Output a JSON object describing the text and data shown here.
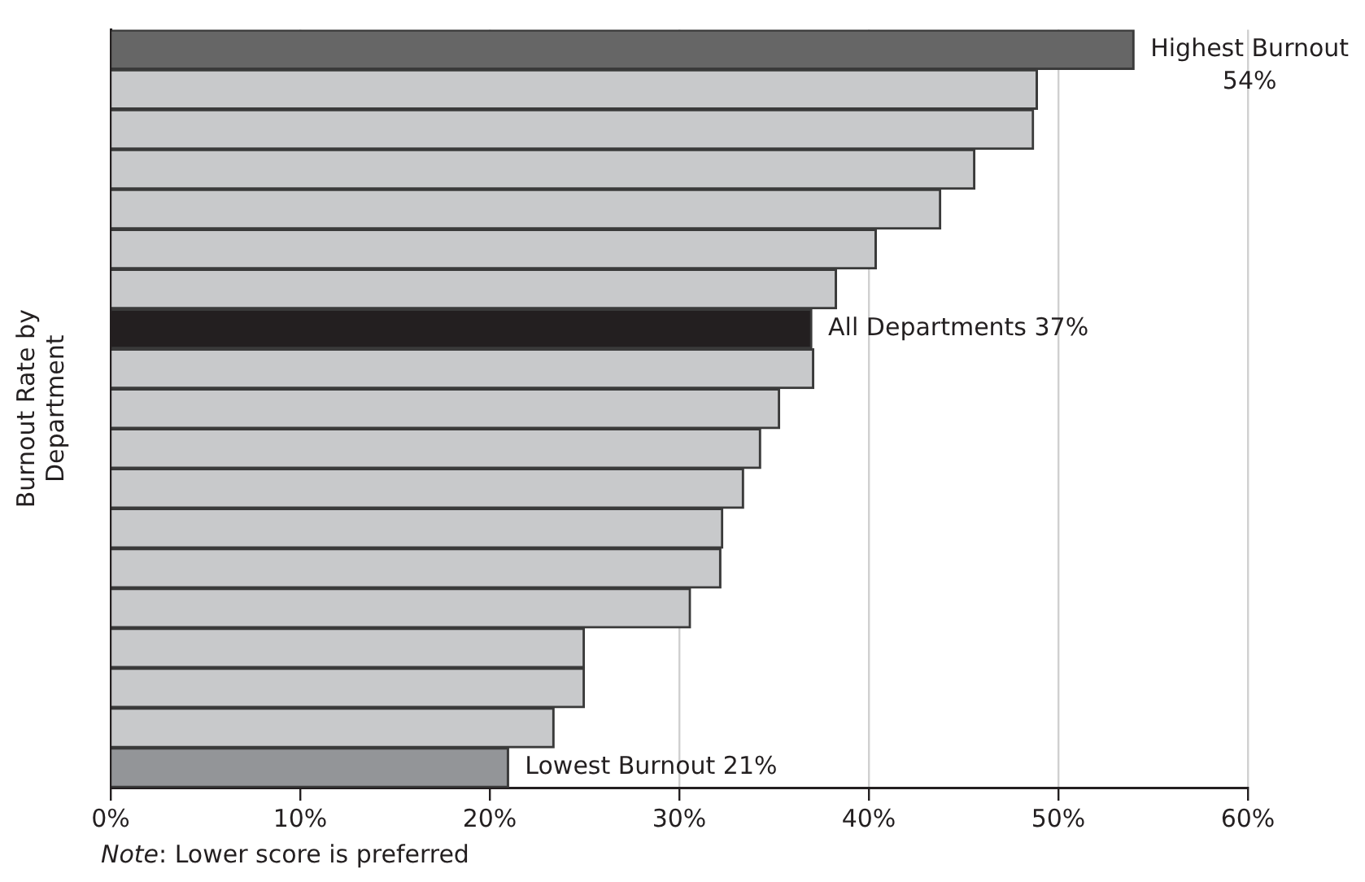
{
  "chart_data": {
    "type": "bar",
    "orientation": "horizontal",
    "ylabel": "Burnout Rate by Department",
    "categories": [
      null,
      null,
      null,
      null,
      null,
      null,
      null,
      null,
      null,
      null,
      null,
      null,
      null,
      null,
      null,
      null,
      null,
      null,
      null
    ],
    "values": [
      54,
      48.9,
      48.7,
      45.6,
      43.8,
      40.4,
      38.3,
      37,
      37.1,
      35.3,
      34.3,
      33.4,
      32.3,
      32.2,
      30.6,
      25.0,
      25.0,
      23.4,
      21
    ],
    "colors": [
      "#666666",
      "#c8c9cb",
      "#c8c9cb",
      "#c8c9cb",
      "#c8c9cb",
      "#c8c9cb",
      "#c8c9cb",
      "#231f20",
      "#c8c9cb",
      "#c8c9cb",
      "#c8c9cb",
      "#c8c9cb",
      "#c8c9cb",
      "#c8c9cb",
      "#c8c9cb",
      "#c8c9cb",
      "#c8c9cb",
      "#c8c9cb",
      "#939598"
    ],
    "value_labels": [
      "Highest Burnout\n54%",
      null,
      null,
      null,
      null,
      null,
      null,
      "All Departments 37%",
      null,
      null,
      null,
      null,
      null,
      null,
      null,
      null,
      null,
      null,
      "Lowest Burnout 21%"
    ],
    "xlim": [
      0,
      60
    ],
    "xticks": [
      {
        "value": 0,
        "label": "0%"
      },
      {
        "value": 10,
        "label": "10%"
      },
      {
        "value": 20,
        "label": "20%"
      },
      {
        "value": 30,
        "label": "30%"
      },
      {
        "value": 40,
        "label": "40%"
      },
      {
        "value": 50,
        "label": "50%"
      },
      {
        "value": 60,
        "label": "60%"
      }
    ],
    "grid": "x",
    "legend": false,
    "annotations": [
      "Note: Lower score is preferred"
    ]
  }
}
